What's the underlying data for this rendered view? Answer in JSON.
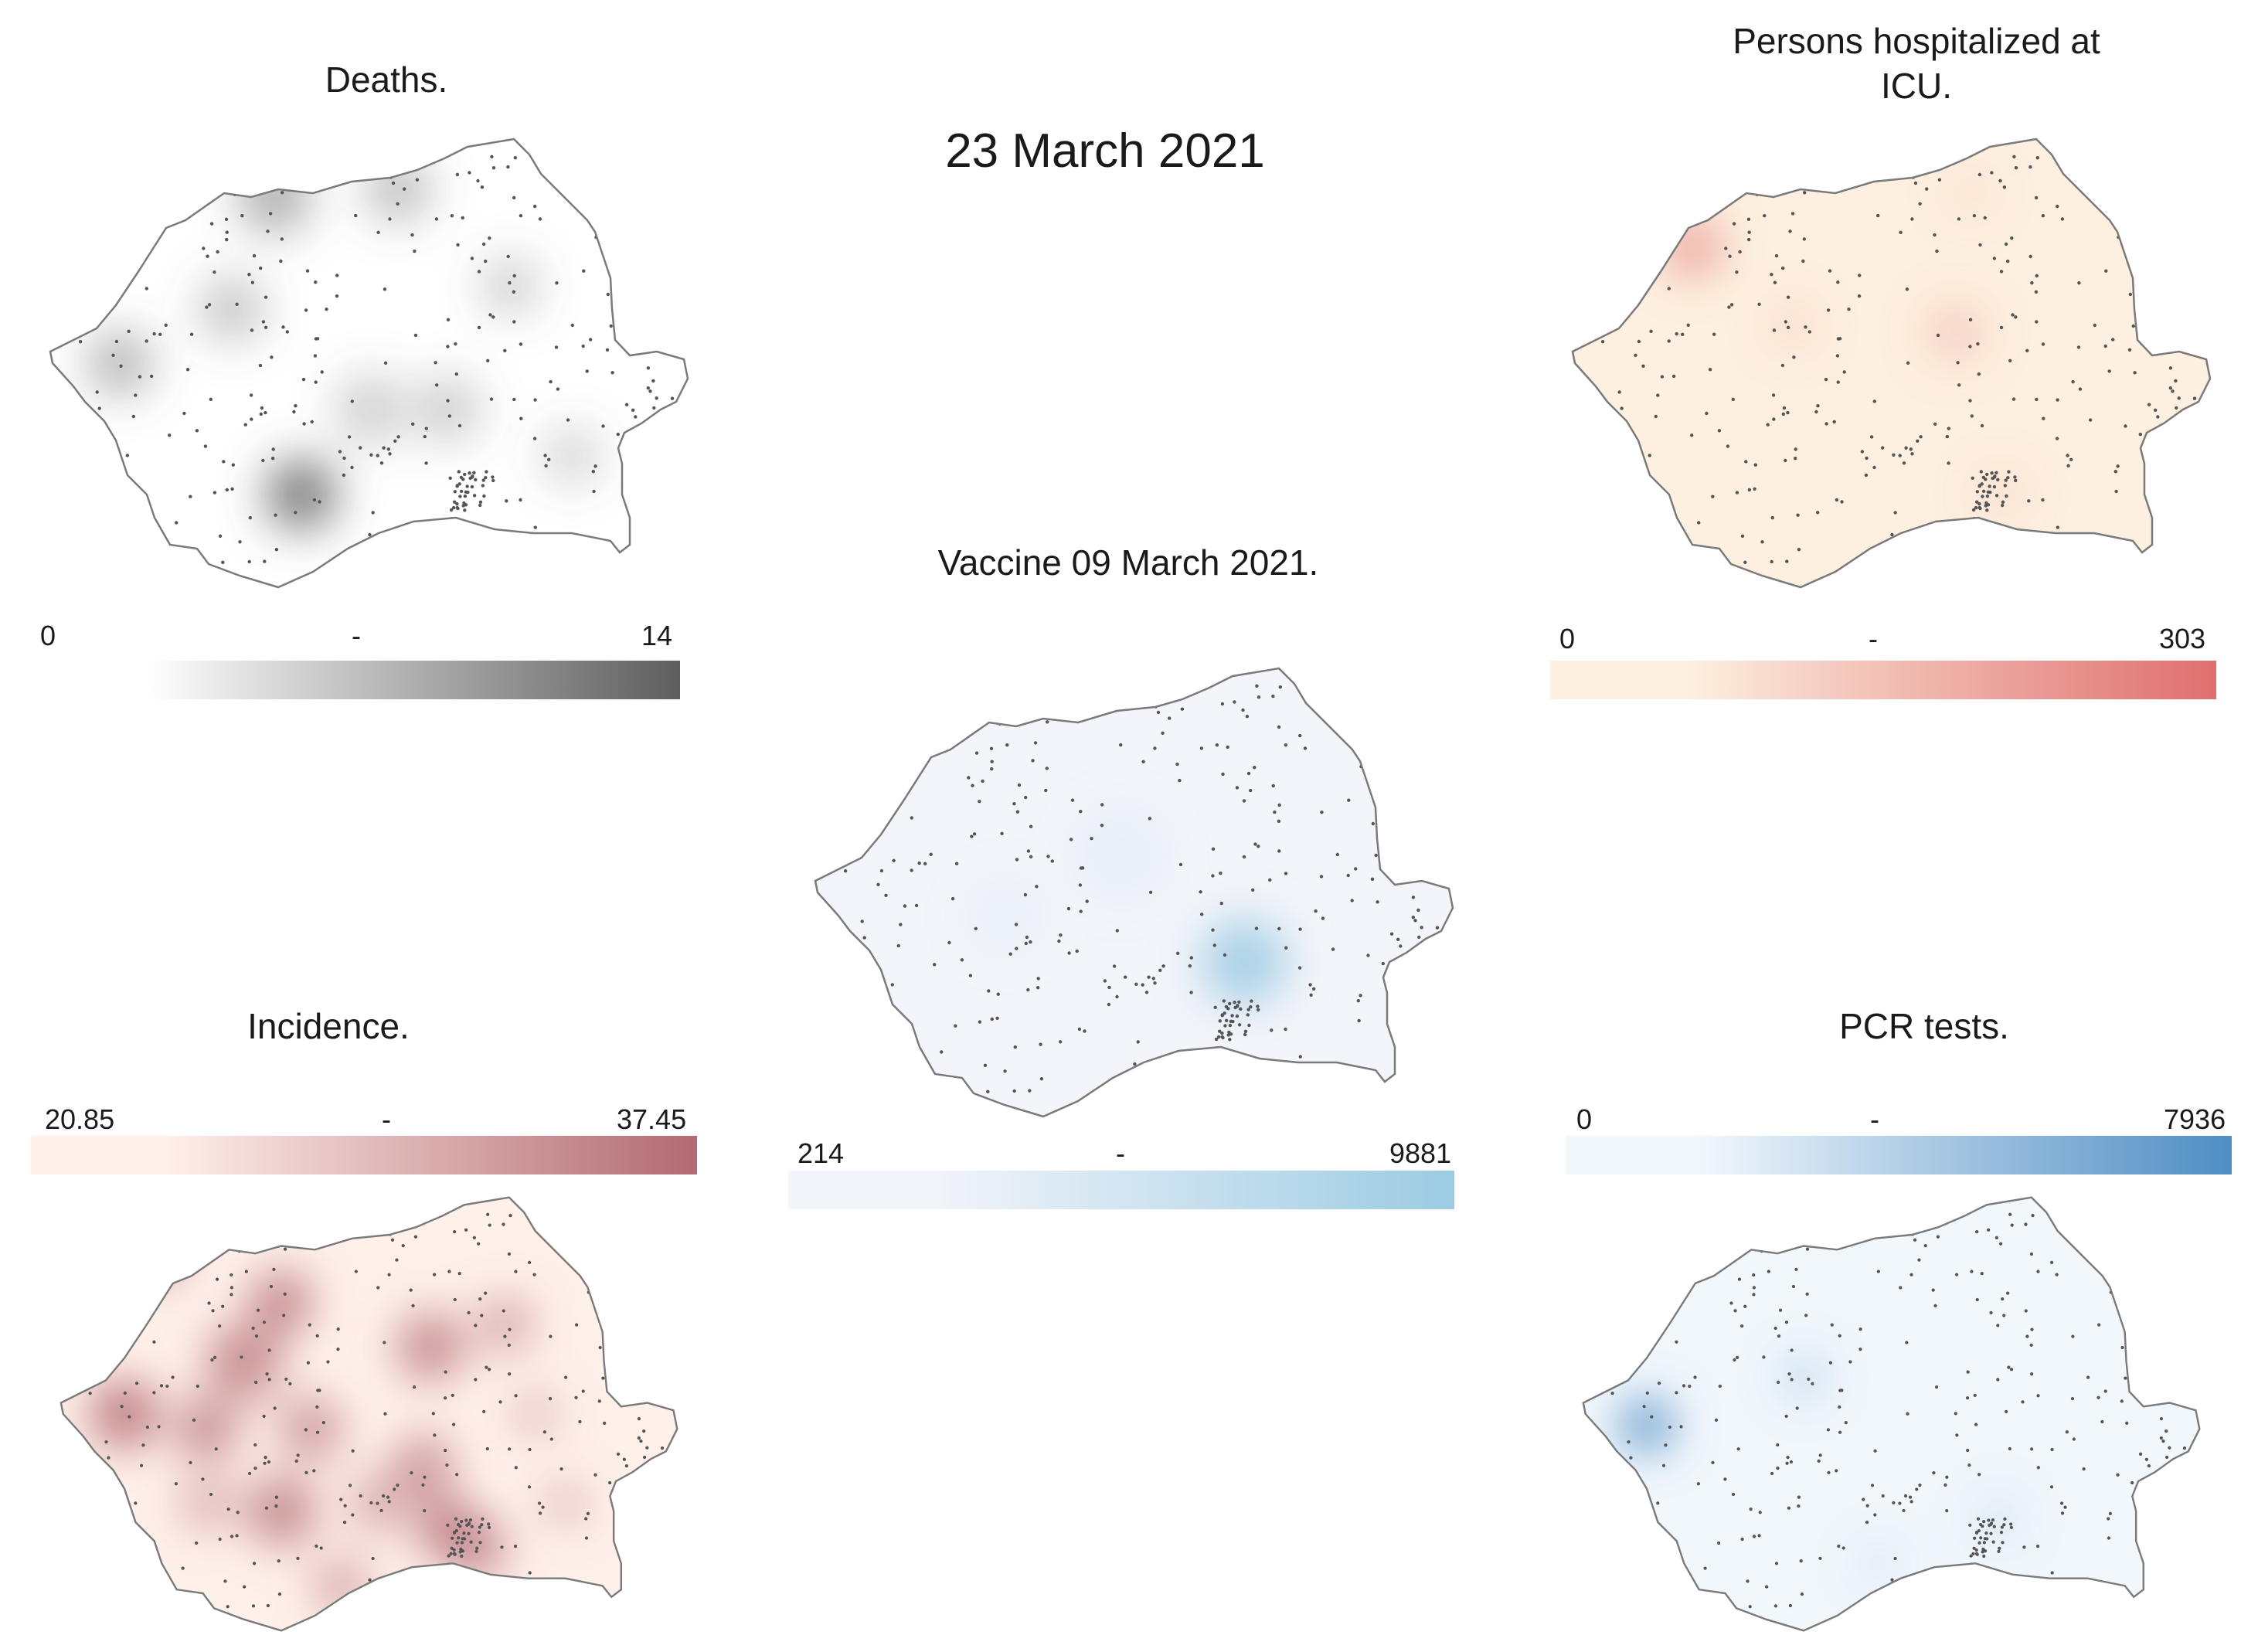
{
  "date_title": "23 March 2021",
  "panels": [
    {
      "id": "deaths",
      "title": "Deaths.",
      "scale": {
        "min": "0",
        "mid": "-",
        "max": "14"
      },
      "colors": [
        "#ffffff",
        "#5e5e5e"
      ]
    },
    {
      "id": "icu",
      "title": "Persons hospitalized at ICU.",
      "scale": {
        "min": "0",
        "mid": "-",
        "max": "303"
      },
      "colors": [
        "#fdf0e0",
        "#df6f6f"
      ]
    },
    {
      "id": "vaccine",
      "title": "Vaccine 09 March 2021.",
      "scale": {
        "min": "214",
        "mid": "-",
        "max": "9881"
      },
      "colors": [
        "#f4f5fa",
        "#9ccbe3"
      ]
    },
    {
      "id": "incidence",
      "title": "Incidence.",
      "scale": {
        "min": "20.85",
        "mid": "-",
        "max": "37.45"
      },
      "colors": [
        "#fff0ea",
        "#b26a74"
      ]
    },
    {
      "id": "pcr",
      "title": "PCR tests.",
      "scale": {
        "min": "0",
        "mid": "-",
        "max": "7936"
      },
      "colors": [
        "#f2f7fc",
        "#4f8dc3"
      ]
    }
  ]
}
